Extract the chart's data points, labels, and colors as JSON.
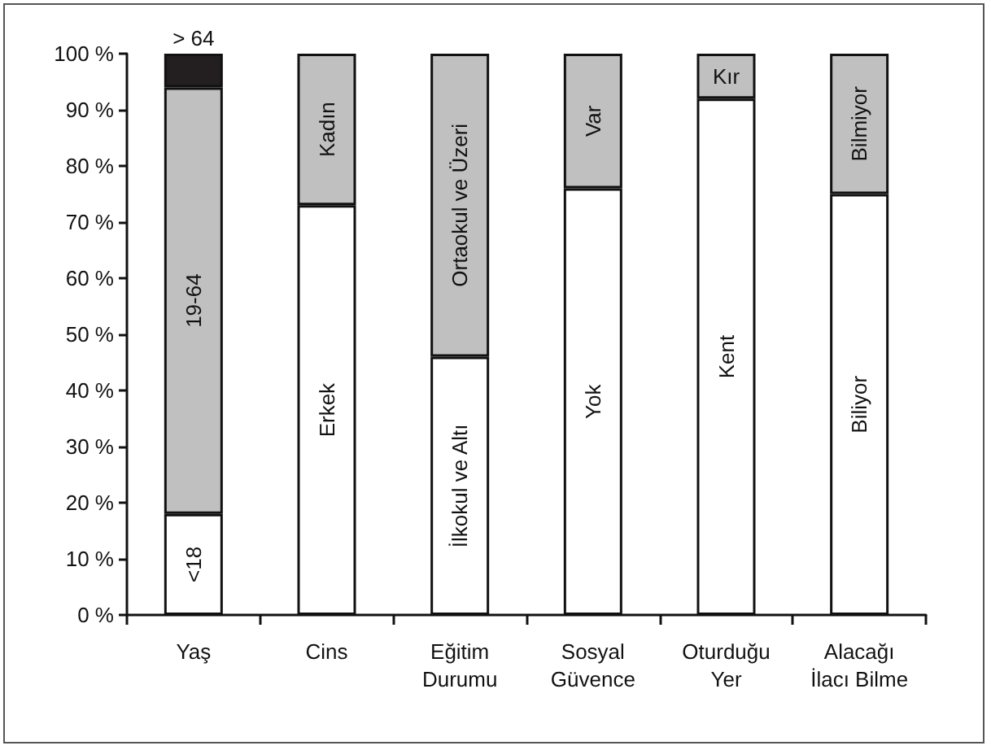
{
  "chart_data": {
    "type": "bar",
    "stacked": true,
    "categories": [
      "Yaş",
      "Cins",
      "Eğitim\nDurumu",
      "Sosyal\nGüvence",
      "Oturduğu\nYer",
      "Alacağı\nİlacı Bilme"
    ],
    "series": [
      {
        "color": "#ffffff",
        "values": [
          18,
          73,
          46,
          76,
          92,
          75
        ],
        "value_labels": [
          "<18",
          "Erkek",
          "İlkokul ve Altı",
          "Yok",
          "Kent",
          "Biliyor"
        ]
      },
      {
        "color": "#c0c0c0",
        "values": [
          76,
          27,
          54,
          24,
          8,
          25
        ],
        "value_labels": [
          "19-64",
          "Kadın",
          "Ortaokul ve Üzeri",
          "Var",
          "Kır",
          "Bilmiyor"
        ]
      },
      {
        "color": "#231f20",
        "values": [
          6,
          null,
          null,
          null,
          null,
          null
        ],
        "value_labels": [
          "> 64",
          null,
          null,
          null,
          null,
          null
        ]
      }
    ],
    "ylim": [
      0,
      100
    ],
    "yticks": [
      {
        "value": 0,
        "label": "0 %"
      },
      {
        "value": 10,
        "label": "10 %"
      },
      {
        "value": 20,
        "label": "20 %"
      },
      {
        "value": 30,
        "label": "30 %"
      },
      {
        "value": 40,
        "label": "40 %"
      },
      {
        "value": 50,
        "label": "50 %"
      },
      {
        "value": 60,
        "label": "60 %"
      },
      {
        "value": 70,
        "label": "70 %"
      },
      {
        "value": 80,
        "label": "80 %"
      },
      {
        "value": 90,
        "label": "90 %"
      },
      {
        "value": 100,
        "label": "100 %"
      }
    ],
    "grid": false
  }
}
